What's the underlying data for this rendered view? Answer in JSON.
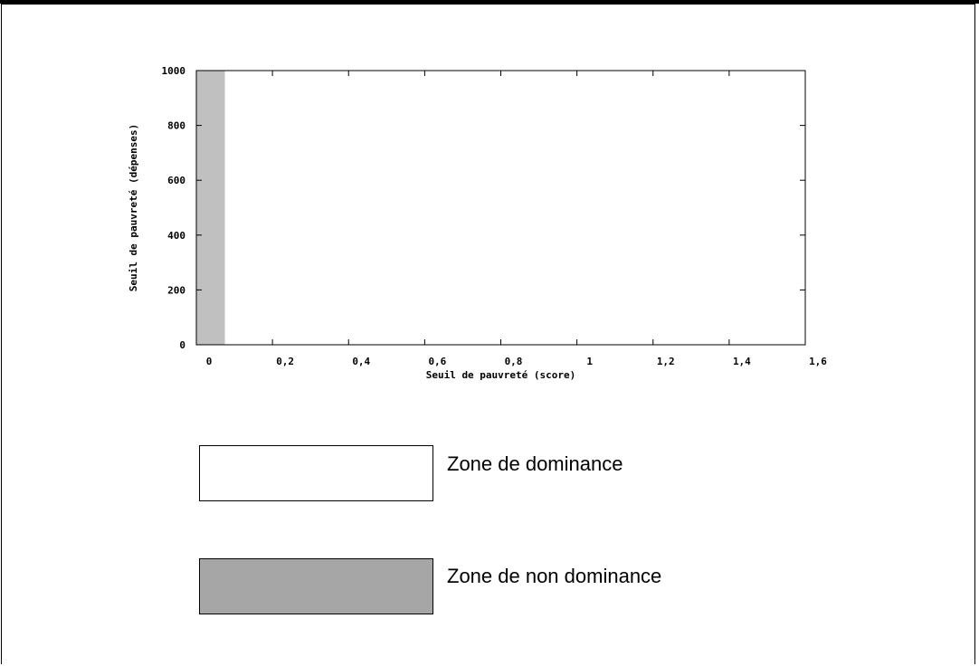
{
  "colors": {
    "axis": "#000000",
    "shaded_region": "#c0c0c0",
    "legend_dominance": "#ffffff",
    "legend_non_dominance": "#a6a6a6"
  },
  "chart_data": {
    "type": "area",
    "title": "",
    "xlabel": "Seuil de pauvreté (score)",
    "ylabel": "Seuil de pauvreté (dépenses)",
    "xlim": [
      0,
      1.6
    ],
    "ylim": [
      0,
      1000
    ],
    "x_ticks": [
      {
        "value": 0,
        "label": "0"
      },
      {
        "value": 0.2,
        "label": "0,2"
      },
      {
        "value": 0.4,
        "label": "0,4"
      },
      {
        "value": 0.6,
        "label": "0,6"
      },
      {
        "value": 0.8,
        "label": "0,8"
      },
      {
        "value": 1.0,
        "label": "1"
      },
      {
        "value": 1.2,
        "label": "1,2"
      },
      {
        "value": 1.4,
        "label": "1,4"
      },
      {
        "value": 1.6,
        "label": "1,6"
      }
    ],
    "y_ticks": [
      {
        "value": 0,
        "label": "0"
      },
      {
        "value": 200,
        "label": "200"
      },
      {
        "value": 400,
        "label": "400"
      },
      {
        "value": 600,
        "label": "600"
      },
      {
        "value": 800,
        "label": "800"
      },
      {
        "value": 1000,
        "label": "1000"
      }
    ],
    "regions": [
      {
        "x": [
          0,
          0.075
        ],
        "y": [
          0,
          1000
        ],
        "zone": "non_dominance"
      }
    ],
    "grid": false
  },
  "legend": {
    "items": [
      {
        "label": "Zone de dominance"
      },
      {
        "label": "Zone de non dominance"
      }
    ]
  }
}
